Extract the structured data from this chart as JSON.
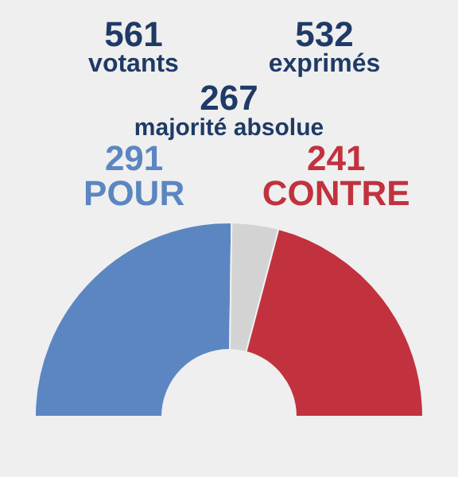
{
  "chart_data": {
    "type": "donut",
    "categories": [
      "POUR",
      null,
      "CONTRE"
    ],
    "values": [
      291,
      45,
      241
    ],
    "colors": [
      "#5b86c1",
      "#d3d3d3",
      "#c1323e"
    ],
    "value_labels": [
      "291",
      null,
      "241"
    ],
    "annotations": [
      "561 votants",
      "532 exprimés",
      "267 majorité absolue"
    ]
  }
}
